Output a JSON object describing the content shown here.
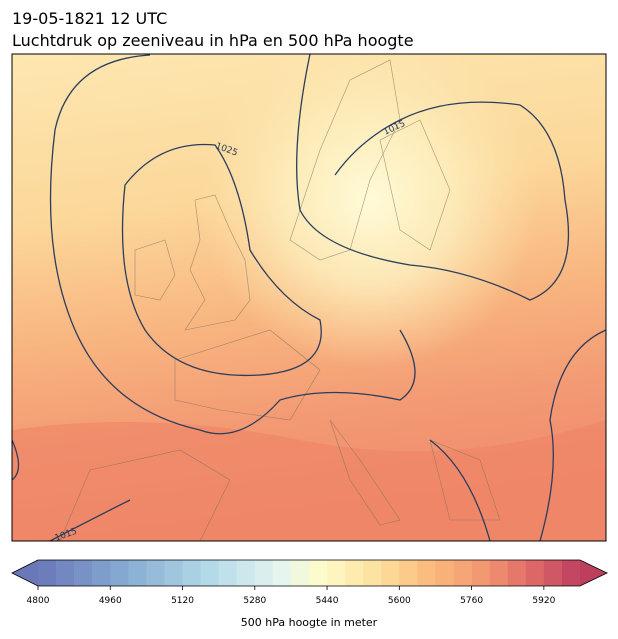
{
  "title": "19-05-1821 12 UTC",
  "subtitle": "Luchtdruk op zeeniveau in hPa en 500 hPa hoogte",
  "map": {
    "isobar_labels": [
      "1025",
      "1015",
      "1015"
    ]
  },
  "colorbar": {
    "label": "500 hPa hoogte in meter",
    "lim": [
      4800,
      6000
    ],
    "bin_width": 40,
    "ticks": [
      4800,
      4960,
      5120,
      5280,
      5440,
      5600,
      5760,
      5920
    ]
  }
}
